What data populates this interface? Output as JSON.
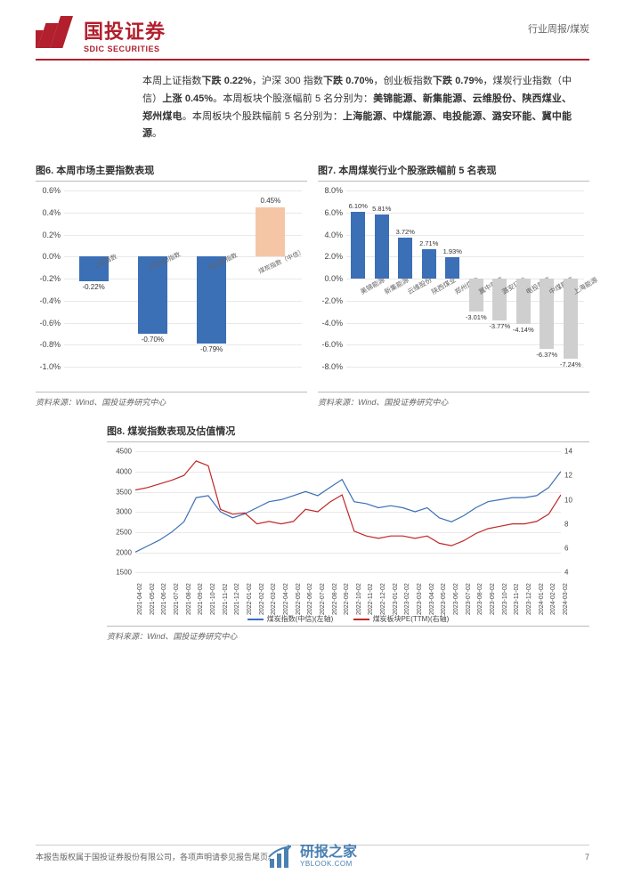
{
  "header": {
    "logo_cn": "国投证券",
    "logo_en": "SDIC SECURITIES",
    "meta": "行业周报/煤炭"
  },
  "intro": {
    "p1_a": "本周上证指数",
    "p1_b": "下跌 0.22%",
    "p1_c": "，沪深 300 指数",
    "p1_d": "下跌 0.70%",
    "p1_e": "，创业板指数",
    "p1_f": "下跌 0.79%",
    "p1_g": "，煤炭行业指数（中信）",
    "p1_h": "上涨 0.45%",
    "p1_i": "。本周板块个股涨幅前 5 名分别为：",
    "p1_j": "美锦能源、新集能源、云维股份、陕西煤业、郑州煤电",
    "p1_k": "。本周板块个股跌幅前 5 名分别为：",
    "p1_l": "上海能源、中煤能源、电投能源、潞安环能、冀中能源",
    "p1_m": "。"
  },
  "chart6": {
    "title": "图6. 本周市场主要指数表现",
    "type": "bar",
    "ylim": [
      -1.0,
      0.6
    ],
    "ytick_step": 0.2,
    "yticks": [
      "0.6%",
      "0.4%",
      "0.2%",
      "0.0%",
      "-0.2%",
      "-0.4%",
      "-0.6%",
      "-0.8%",
      "-1.0%"
    ],
    "categories": [
      "上证指数",
      "沪深300指数",
      "创业板指数",
      "煤炭指数（中信）"
    ],
    "values": [
      -0.22,
      -0.7,
      -0.79,
      0.45
    ],
    "value_labels": [
      "-0.22%",
      "-0.70%",
      "-0.79%",
      "0.45%"
    ],
    "bar_colors": [
      "#3b6fb6",
      "#3b6fb6",
      "#3b6fb6",
      "#f5c6a5"
    ],
    "grid_color": "#e8e8e8",
    "bar_width": 0.55,
    "source": "资料来源：Wind、国投证券研究中心"
  },
  "chart7": {
    "title": "图7. 本周煤炭行业个股涨跌幅前 5 名表现",
    "type": "bar",
    "ylim": [
      -8.0,
      8.0
    ],
    "ytick_step": 2.0,
    "yticks": [
      "8.0%",
      "6.0%",
      "4.0%",
      "2.0%",
      "0.0%",
      "-2.0%",
      "-4.0%",
      "-6.0%",
      "-8.0%"
    ],
    "categories": [
      "美锦能源",
      "新集能源",
      "云维股份",
      "陕西煤业",
      "郑州煤电",
      "冀中能源",
      "潞安环能",
      "电投能源",
      "中煤能源",
      "上海能源"
    ],
    "values": [
      6.1,
      5.81,
      3.72,
      2.71,
      1.93,
      -3.01,
      -3.77,
      -4.14,
      -6.37,
      -7.24
    ],
    "value_labels": [
      "6.10%",
      "5.81%",
      "3.72%",
      "2.71%",
      "1.93%",
      "-3.01%",
      "-3.77%",
      "-4.14%",
      "-6.37%",
      "-7.24%"
    ],
    "bar_colors": [
      "#3b6fb6",
      "#3b6fb6",
      "#3b6fb6",
      "#3b6fb6",
      "#3b6fb6",
      "#cfcfcf",
      "#cfcfcf",
      "#cfcfcf",
      "#cfcfcf",
      "#cfcfcf"
    ],
    "grid_color": "#e8e8e8",
    "bar_width": 0.6,
    "source": "资料来源：Wind、国投证券研究中心"
  },
  "chart8": {
    "title": "图8. 煤炭指数表现及估值情况",
    "type": "dual-axis-line",
    "left_axis": {
      "lim": [
        1500,
        4500
      ],
      "ticks": [
        "4500",
        "4000",
        "3500",
        "3000",
        "2500",
        "2000",
        "1500"
      ]
    },
    "right_axis": {
      "lim": [
        4,
        14
      ],
      "ticks": [
        "14",
        "12",
        "10",
        "8",
        "6",
        "4"
      ]
    },
    "x_dates": [
      "2021-04-02",
      "2021-05-02",
      "2021-06-02",
      "2021-07-02",
      "2021-08-02",
      "2021-09-02",
      "2021-10-02",
      "2021-11-02",
      "2021-12-02",
      "2022-01-02",
      "2022-02-02",
      "2022-03-02",
      "2022-04-02",
      "2022-05-02",
      "2022-06-02",
      "2022-07-02",
      "2022-08-02",
      "2022-09-02",
      "2022-10-02",
      "2022-11-02",
      "2022-12-02",
      "2023-01-02",
      "2023-02-02",
      "2023-03-02",
      "2023-04-02",
      "2023-05-02",
      "2023-06-02",
      "2023-07-02",
      "2023-08-02",
      "2023-09-02",
      "2023-10-02",
      "2023-11-02",
      "2023-12-02",
      "2024-01-02",
      "2024-02-02",
      "2024-03-02"
    ],
    "series": [
      {
        "name": "煤炭指数(中信)(左轴)",
        "color": "#3b6fb6",
        "line_width": 1.2,
        "data": [
          2000,
          2150,
          2300,
          2500,
          2750,
          3350,
          3400,
          3000,
          2850,
          2950,
          3100,
          3250,
          3300,
          3400,
          3500,
          3400,
          3600,
          3800,
          3250,
          3200,
          3100,
          3150,
          3100,
          3000,
          3100,
          2850,
          2750,
          2900,
          3100,
          3250,
          3300,
          3350,
          3350,
          3400,
          3600,
          4000
        ]
      },
      {
        "name": "煤炭板块PE(TTM)(右轴)",
        "color": "#c02828",
        "line_width": 1.2,
        "data": [
          10.8,
          11.0,
          11.3,
          11.6,
          12.0,
          13.2,
          12.8,
          9.2,
          8.8,
          8.9,
          8.0,
          8.2,
          8.0,
          8.2,
          9.2,
          9.0,
          9.8,
          10.4,
          7.4,
          7.0,
          6.8,
          7.0,
          7.0,
          6.8,
          7.0,
          6.4,
          6.2,
          6.6,
          7.2,
          7.6,
          7.8,
          8.0,
          8.0,
          8.2,
          8.8,
          10.4
        ]
      }
    ],
    "grid_color": "#e8e8e8",
    "source": "资料来源：Wind、国投证券研究中心"
  },
  "footer": {
    "disclaimer": "本报告版权属于国投证券股份有限公司，各项声明请参见报告尾页。",
    "page": "7"
  },
  "watermark": {
    "cn": "研报之家",
    "en": "YBLOOK.COM"
  }
}
